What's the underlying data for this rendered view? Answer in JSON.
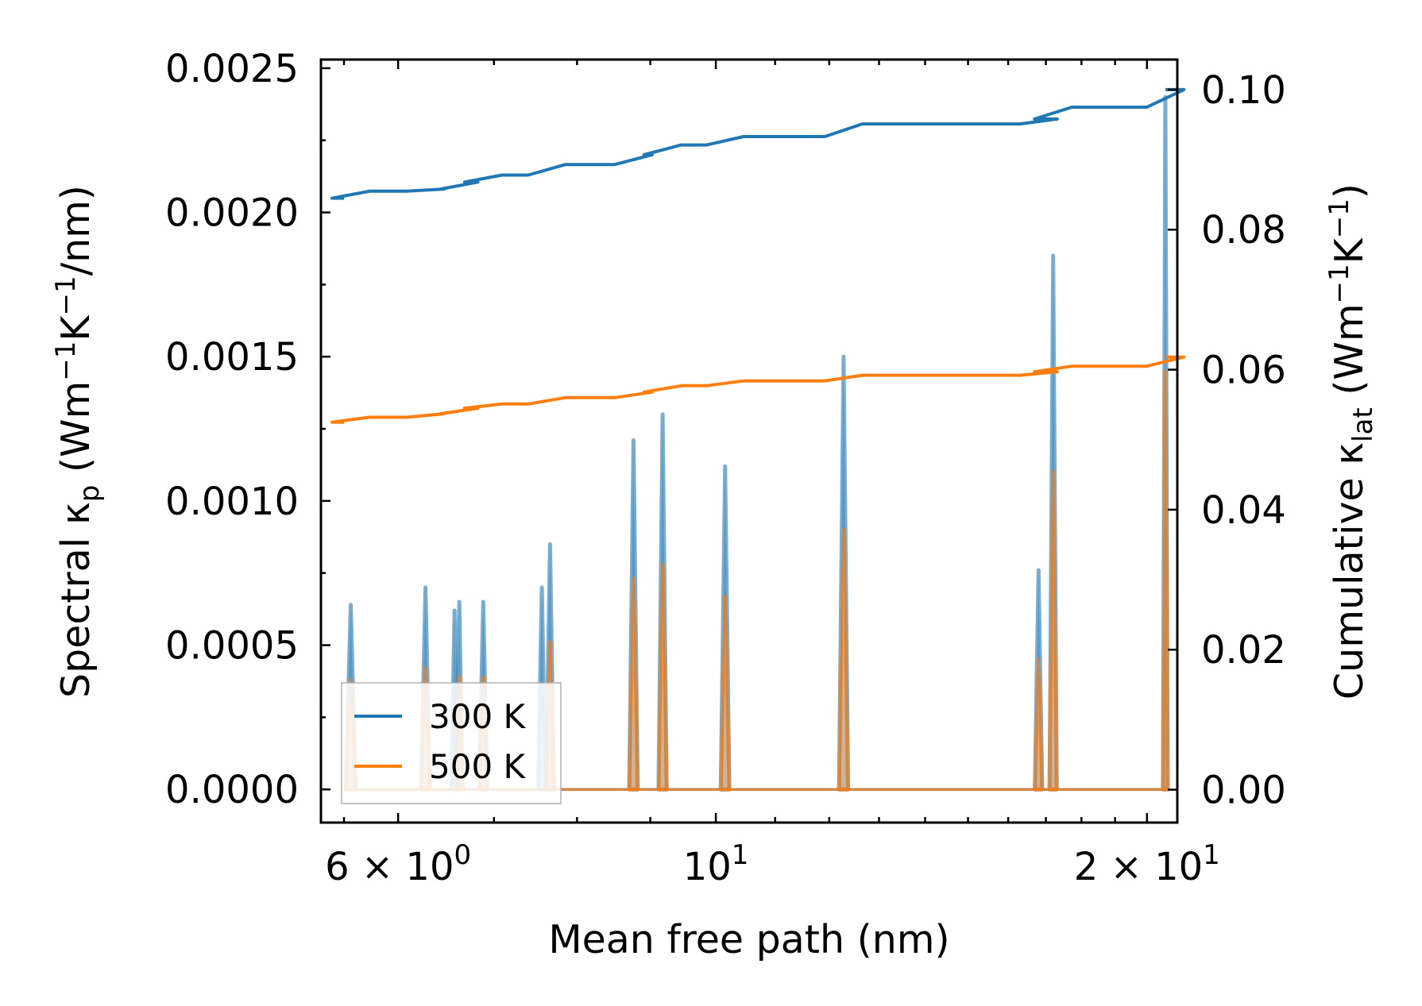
{
  "chart_data": {
    "type": "line",
    "xscale": "log",
    "xlim": [
      5.3,
      21.0
    ],
    "ylim_left": [
      -0.000115,
      0.00253
    ],
    "ylim_right": [
      -0.0047,
      0.1043
    ],
    "xlabel": "Mean free path (nm)",
    "ylabel_left": {
      "main": "Spectral κ",
      "sub": "p",
      "units_open": " (Wm",
      "e1": "−1",
      "mid": "K",
      "e2": "−1",
      "units_close": "/nm)"
    },
    "ylabel_right": {
      "main": "Cumulative κ",
      "sub": "lat",
      "units_open": " (Wm",
      "e1": "−1",
      "mid": "K",
      "e2": "−1",
      "units_close": ")"
    },
    "x_ticks": [
      {
        "value": 6,
        "base": "6 × 10",
        "exp": "0"
      },
      {
        "value": 10,
        "base": "10",
        "exp": "1"
      },
      {
        "value": 20,
        "base": "2 × 10",
        "exp": "1"
      }
    ],
    "x_minor_ticks": [
      5.5,
      7,
      8,
      9,
      11,
      12,
      13,
      14,
      15,
      16,
      17,
      18,
      19
    ],
    "y_left_ticks": [
      "0.0000",
      "0.0005",
      "0.0010",
      "0.0015",
      "0.0020",
      "0.0025"
    ],
    "y_left_tick_values": [
      0,
      0.0005,
      0.001,
      0.0015,
      0.002,
      0.0025
    ],
    "y_right_ticks": [
      "0.00",
      "0.02",
      "0.04",
      "0.06",
      "0.08",
      "0.10"
    ],
    "y_right_tick_values": [
      0,
      0.02,
      0.04,
      0.06,
      0.08,
      0.1
    ],
    "legend": {
      "location": "lower-left",
      "entries": [
        "300 K",
        "500 K"
      ]
    },
    "colors": {
      "t300": "#1f77b4",
      "t500": "#ff7f0e"
    },
    "spectral_series": [
      {
        "name": "300 K",
        "peaks": [
          {
            "center": 5.56,
            "half_width": 0.045,
            "height": 0.00064
          },
          {
            "center": 6.27,
            "half_width": 0.045,
            "height": 0.0007
          },
          {
            "center": 6.57,
            "half_width": 0.035,
            "height": 0.00062
          },
          {
            "center": 6.62,
            "half_width": 0.035,
            "height": 0.00065
          },
          {
            "center": 6.88,
            "half_width": 0.045,
            "height": 0.00065
          },
          {
            "center": 7.56,
            "half_width": 0.045,
            "height": 0.0007
          },
          {
            "center": 7.66,
            "half_width": 0.05,
            "height": 0.00085
          },
          {
            "center": 8.76,
            "half_width": 0.06,
            "height": 0.00121
          },
          {
            "center": 9.18,
            "half_width": 0.06,
            "height": 0.0013
          },
          {
            "center": 10.15,
            "half_width": 0.07,
            "height": 0.00112
          },
          {
            "center": 12.28,
            "half_width": 0.09,
            "height": 0.0015
          },
          {
            "center": 16.8,
            "half_width": 0.1,
            "height": 0.00076
          },
          {
            "center": 17.2,
            "half_width": 0.1,
            "height": 0.00185
          },
          {
            "center": 20.6,
            "half_width": 0.08,
            "height": 0.0024
          }
        ]
      },
      {
        "name": "500 K",
        "peaks": [
          {
            "center": 5.56,
            "half_width": 0.045,
            "height": 0.00038
          },
          {
            "center": 6.27,
            "half_width": 0.045,
            "height": 0.00042
          },
          {
            "center": 6.62,
            "half_width": 0.04,
            "height": 0.00039
          },
          {
            "center": 6.88,
            "half_width": 0.045,
            "height": 0.00039
          },
          {
            "center": 7.66,
            "half_width": 0.05,
            "height": 0.00051
          },
          {
            "center": 8.76,
            "half_width": 0.06,
            "height": 0.00073
          },
          {
            "center": 9.18,
            "half_width": 0.06,
            "height": 0.00078
          },
          {
            "center": 10.15,
            "half_width": 0.07,
            "height": 0.00067
          },
          {
            "center": 12.28,
            "half_width": 0.09,
            "height": 0.0009
          },
          {
            "center": 16.8,
            "half_width": 0.1,
            "height": 0.00045
          },
          {
            "center": 17.2,
            "half_width": 0.1,
            "height": 0.0011
          },
          {
            "center": 20.6,
            "half_width": 0.08,
            "height": 0.00145
          }
        ]
      }
    ],
    "cumulative_series": [
      {
        "name": "300 K",
        "x_start": 5.5,
        "x_end": 20.6,
        "start": 0.0845,
        "steps": [
          {
            "x": 5.56,
            "value": 0.0855
          },
          {
            "x": 6.27,
            "value": 0.0858
          },
          {
            "x": 6.62,
            "value": 0.0868
          },
          {
            "x": 6.88,
            "value": 0.0878
          },
          {
            "x": 7.62,
            "value": 0.0893
          },
          {
            "x": 8.76,
            "value": 0.0907
          },
          {
            "x": 9.18,
            "value": 0.0921
          },
          {
            "x": 10.15,
            "value": 0.0933
          },
          {
            "x": 12.28,
            "value": 0.0951
          },
          {
            "x": 16.8,
            "value": 0.0958
          },
          {
            "x": 17.2,
            "value": 0.0975
          },
          {
            "x": 20.6,
            "value": 0.1
          }
        ]
      },
      {
        "name": "500 K",
        "x_start": 5.5,
        "x_end": 20.6,
        "start": 0.0525,
        "steps": [
          {
            "x": 5.56,
            "value": 0.0532
          },
          {
            "x": 6.27,
            "value": 0.0537
          },
          {
            "x": 6.62,
            "value": 0.0545
          },
          {
            "x": 6.88,
            "value": 0.0551
          },
          {
            "x": 7.62,
            "value": 0.056
          },
          {
            "x": 8.76,
            "value": 0.0568
          },
          {
            "x": 9.18,
            "value": 0.0577
          },
          {
            "x": 10.15,
            "value": 0.0584
          },
          {
            "x": 12.28,
            "value": 0.0592
          },
          {
            "x": 16.8,
            "value": 0.0597
          },
          {
            "x": 17.2,
            "value": 0.0605
          },
          {
            "x": 20.6,
            "value": 0.0618
          }
        ]
      }
    ]
  }
}
